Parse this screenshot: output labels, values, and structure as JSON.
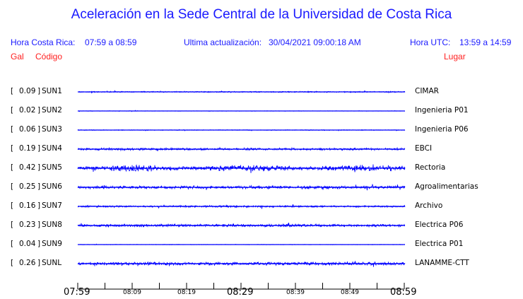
{
  "title": "Aceleración en la Sede Central de la Universidad de Costa Rica",
  "header": {
    "local_label": "Hora Costa Rica:",
    "local_range": "07:59 a 08:59",
    "update_label": "Ultima actualización:",
    "update_value": "30/04/2021 09:00:18 AM",
    "utc_label": "Hora UTC:",
    "utc_range": "13:59 a 14:59"
  },
  "columns": {
    "gal": "Gal",
    "code": "Código",
    "place": "Lugar"
  },
  "colors": {
    "title": "#1a1aff",
    "column_headers": "#ff2020",
    "trace": "#0000ff"
  },
  "stations": [
    {
      "gal": "0.09",
      "code": "SUN1",
      "place": "CIMAR"
    },
    {
      "gal": "0.02",
      "code": "SUN2",
      "place": "Ingenieria P01"
    },
    {
      "gal": "0.06",
      "code": "SUN3",
      "place": "Ingenieria P06"
    },
    {
      "gal": "0.19",
      "code": "SUN4",
      "place": "EBCI"
    },
    {
      "gal": "0.42",
      "code": "SUN5",
      "place": "Rectoria"
    },
    {
      "gal": "0.25",
      "code": "SUN6",
      "place": "Agroalimentarias"
    },
    {
      "gal": "0.16",
      "code": "SUN7",
      "place": "Archivo"
    },
    {
      "gal": "0.23",
      "code": "SUN8",
      "place": "Electrica P06"
    },
    {
      "gal": "0.04",
      "code": "SUN9",
      "place": "Electrica P01"
    },
    {
      "gal": "0.26",
      "code": "SUNL",
      "place": "LANAMME-CTT"
    }
  ],
  "time_axis": {
    "major": [
      "07:59",
      "08:29",
      "08:59"
    ],
    "minor": [
      "08:09",
      "08:19",
      "08:39",
      "08:49"
    ]
  }
}
